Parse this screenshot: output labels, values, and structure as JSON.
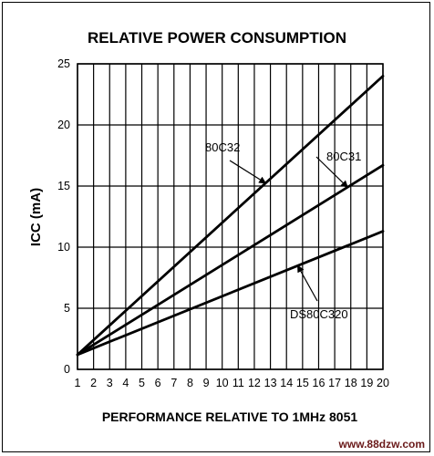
{
  "chart_data": {
    "type": "line",
    "title": "RELATIVE POWER CONSUMPTION",
    "xlabel": "PERFORMANCE RELATIVE TO 1MHz 8051",
    "ylabel": "ICC (mA)",
    "xlim": [
      1,
      20
    ],
    "ylim": [
      0,
      25
    ],
    "xticks": [
      "1",
      "2",
      "3",
      "4",
      "5",
      "6",
      "7",
      "8",
      "9",
      "10",
      "11",
      "12",
      "13",
      "14",
      "15",
      "16",
      "17",
      "18",
      "19",
      "20"
    ],
    "yticks": [
      "0",
      "5",
      "10",
      "15",
      "20",
      "25"
    ],
    "grid": true,
    "series": [
      {
        "name": "80C32",
        "x": [
          1,
          20
        ],
        "y": [
          1.2,
          24.0
        ]
      },
      {
        "name": "80C31",
        "x": [
          1,
          20
        ],
        "y": [
          1.2,
          16.7
        ]
      },
      {
        "name": "DS80C320",
        "x": [
          1,
          20
        ],
        "y": [
          1.2,
          11.3
        ]
      }
    ]
  },
  "watermark": "www.88dzw.com"
}
